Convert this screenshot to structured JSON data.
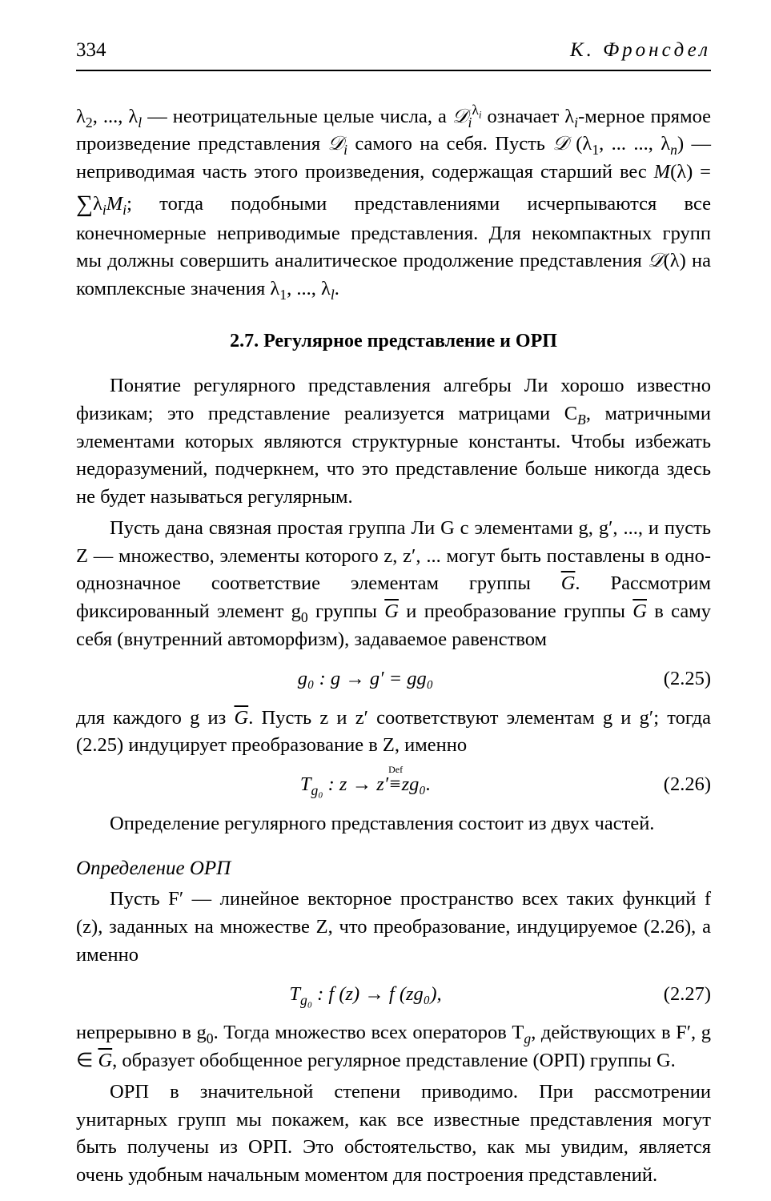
{
  "page_number": "334",
  "author_header": "К. Фронсдел",
  "p1_a": "λ",
  "p1_b": ", ..., λ",
  "p1_c": " — неотрицательные целые числа, а ",
  "p1_d": " означает λ",
  "p1_e": "-мерное прямое произведение представления ",
  "p1_f": " самого на себя. Пусть ",
  "p1_g": " (λ",
  "p1_h": ", ... ..., λ",
  "p1_i": ") — неприводимая часть этого произведения, содержащая старший вес ",
  "p1_j": "(λ) = ",
  "p1_k": "λ",
  "p1_l": "; тогда подобными представлениями исчерпываются все конечномерные неприводимые представления. Для некомпактных групп мы должны совершить аналитическое продолжение представления ",
  "p1_m": "(λ) на комплексные значения λ",
  "p1_n": ", ..., λ",
  "p1_o": ".",
  "sec_title": "2.7. Регулярное представление и ОРП",
  "p2": "Понятие регулярного представления алгебры Ли хорошо известно физикам; это представление реализуется матрицами C",
  "p2b": ", матричными элементами которых являются структурные константы. Чтобы избежать недоразумений, подчеркнем, что это представление больше никогда здесь не будет называться регулярным.",
  "p3a": "Пусть дана связная простая группа Ли G с элементами g, g′, ..., и пусть Z — множество, элементы которого z, z′, ... могут быть поставлены в одно-однозначное соответствие элементам группы ",
  "p3b": ". Рассмотрим фиксированный элемент g",
  "p3c": " группы ",
  "p3d": " и преобразование группы ",
  "p3e": " в саму себя (внутренний автоморфизм), задаваемое равенством",
  "eq1_text": "g₀ : g → g′ = gg₀",
  "eq1_num": "(2.25)",
  "p4a": "для каждого g из ",
  "p4b": ". Пусть z и z′ соответствуют элементам g и g′; тогда (2.25) индуцирует преобразование в Z, именно",
  "eq2_left": "T",
  "eq2_mid": " : z → z′",
  "eq2_def": "Def",
  "eq2_eq": "≡",
  "eq2_right": "zg₀.",
  "eq2_num": "(2.26)",
  "p5": "Определение регулярного представления состоит из двух частей.",
  "def_title": "Определение ОРП",
  "p6a": "Пусть F′ — линейное векторное пространство всех таких функций f (z), заданных на множестве Z, что преобразование, индуцируемое (2.26), а именно",
  "eq3_text": "T",
  "eq3_mid": " : f (z) → f (zg₀),",
  "eq3_num": "(2.27)",
  "p7a": "непрерывно в g",
  "p7b": ". Тогда множество всех операторов T",
  "p7c": ", действующих в F′, g ∈ ",
  "p7d": ", образует обобщенное регулярное представление (ОРП) группы G.",
  "p8": "ОРП в значительной степени приводимо. При рассмотрении унитарных групп мы покажем, как все известные представления могут быть получены из ОРП. Это обстоятельство, как мы увидим, является очень удобным начальным моментом для построения представлений.",
  "scriptD": "𝒟",
  "M": "M",
  "Gbar": "G"
}
